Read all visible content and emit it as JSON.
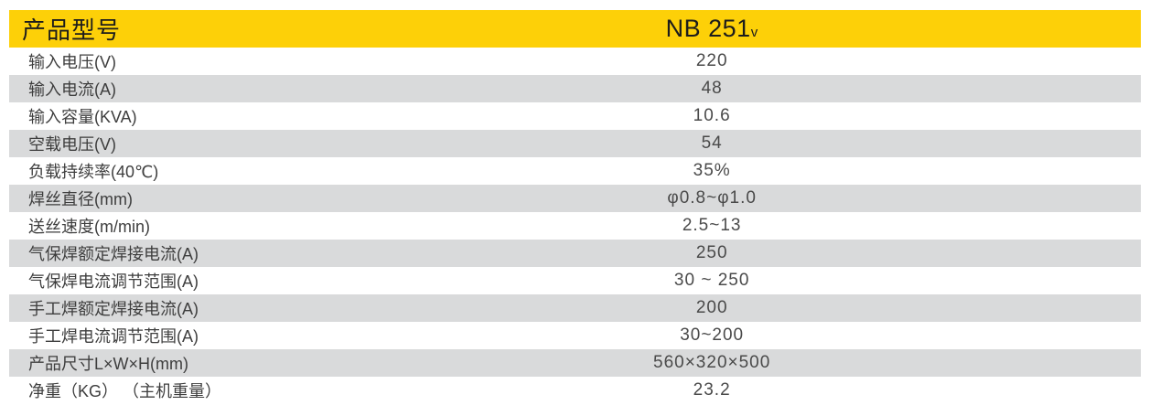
{
  "table": {
    "header": {
      "label": "产品型号",
      "model": "NB 251",
      "model_suffix": "v"
    },
    "rows": [
      {
        "label": "输入电压(V)",
        "value": "220"
      },
      {
        "label": "输入电流(A)",
        "value": "48"
      },
      {
        "label": "输入容量(KVA)",
        "value": "10.6"
      },
      {
        "label": "空载电压(V)",
        "value": "54"
      },
      {
        "label": "负载持续率(40℃)",
        "value": "35%"
      },
      {
        "label": "焊丝直径(mm)",
        "value": "φ0.8~φ1.0"
      },
      {
        "label": "送丝速度(m/min)",
        "value": "2.5~13"
      },
      {
        "label": "气保焊额定焊接电流(A)",
        "value": "250"
      },
      {
        "label": "气保焊电流调节范围(A)",
        "value": "30 ~ 250"
      },
      {
        "label": "手工焊额定焊接电流(A)",
        "value": "200"
      },
      {
        "label": "手工焊电流调节范围(A)",
        "value": "30~200"
      },
      {
        "label": "产品尺寸L×W×H(mm)",
        "value": "560×320×500"
      },
      {
        "label": "净重（KG） （主机重量）",
        "value": "23.2"
      }
    ],
    "colors": {
      "header_bg": "#FDD008",
      "header_text": "#1C1C1C",
      "row_alt_bg": "#D9DADB",
      "label_text": "#3E3E3E",
      "value_text": "#4A4A4A"
    }
  }
}
